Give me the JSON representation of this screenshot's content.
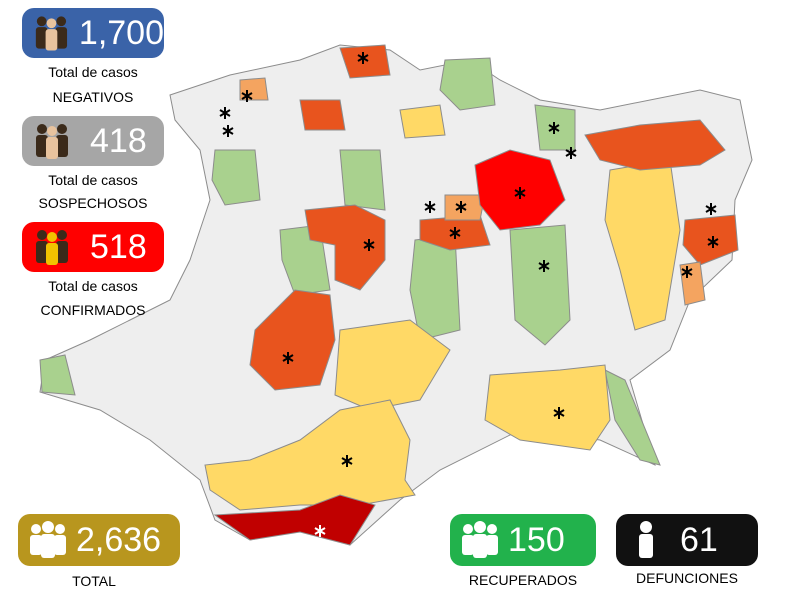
{
  "stats": [
    {
      "value": "1,700",
      "label_1": "Total de casos",
      "label_2": "NEGATIVOS"
    },
    {
      "value": "418",
      "label_1": "Total de casos",
      "label_2": "SOSPECHOSOS"
    },
    {
      "value": "518",
      "label_1": "Total de casos",
      "label_2": "CONFIRMADOS"
    },
    {
      "value": "2,636",
      "label": "TOTAL"
    },
    {
      "value": "150",
      "label": "RECUPERADOS"
    },
    {
      "value": "61",
      "label": "DEFUNCIONES"
    }
  ]
}
